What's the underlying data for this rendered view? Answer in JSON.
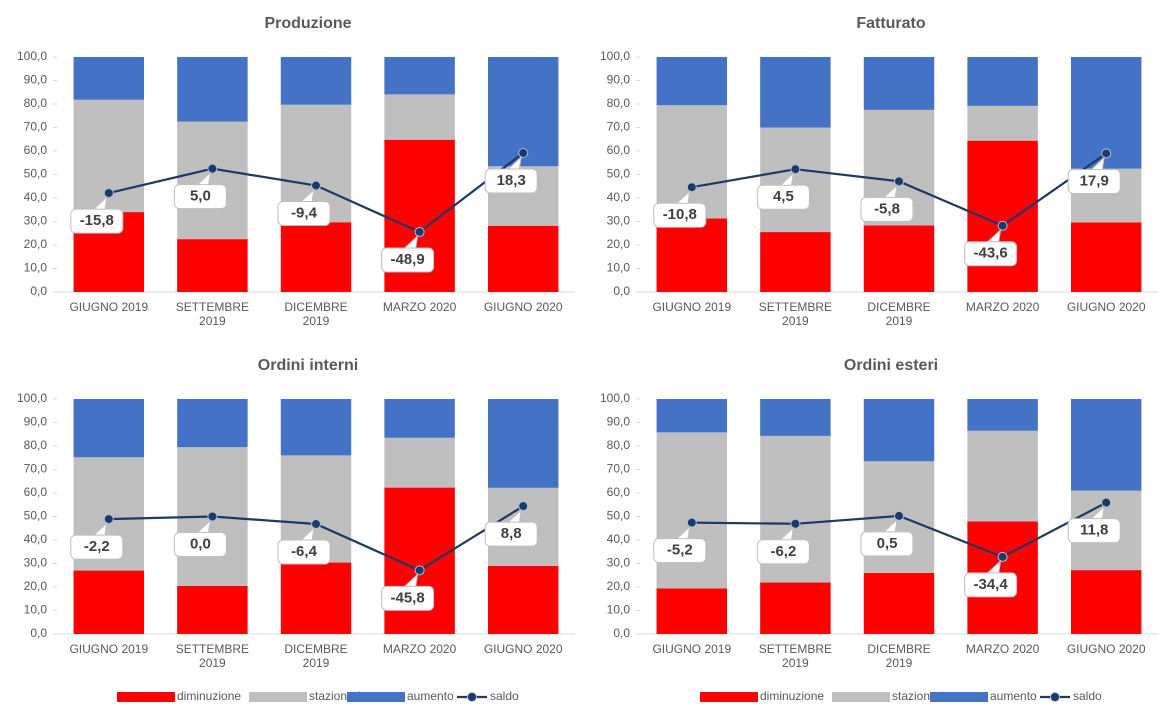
{
  "chart_data": [
    {
      "type": "stacked-bar-line",
      "title": "Produzione",
      "categories": [
        "GIUGNO 2019",
        "SETTEMBRE 2019",
        "DICEMBRE 2019",
        "MARZO 2020",
        "GIUGNO 2020"
      ],
      "ylim": [
        0,
        100
      ],
      "y2lim": [
        -100,
        100
      ],
      "yticks": [
        {
          "value": 0,
          "label": "0,0"
        },
        {
          "value": 10,
          "label": "10,0"
        },
        {
          "value": 20,
          "label": "20,0"
        },
        {
          "value": 30,
          "label": "30,0"
        },
        {
          "value": 40,
          "label": "40,0"
        },
        {
          "value": 50,
          "label": "50,0"
        },
        {
          "value": 60,
          "label": "60,0"
        },
        {
          "value": 70,
          "label": "70,0"
        },
        {
          "value": 80,
          "label": "80,0"
        },
        {
          "value": 90,
          "label": "90,0"
        },
        {
          "value": 100,
          "label": "100,0"
        }
      ],
      "legend": false,
      "series": [
        {
          "name": "diminuzione",
          "color": "#ff0000",
          "values": [
            34.0,
            22.5,
            29.7,
            64.8,
            28.2
          ]
        },
        {
          "name": "stazionaria",
          "color": "#bfbfbf",
          "values": [
            47.8,
            50.0,
            50.0,
            19.3,
            25.3
          ]
        },
        {
          "name": "aumento",
          "color": "#4472c4",
          "values": [
            18.2,
            27.5,
            20.3,
            15.9,
            46.5
          ]
        },
        {
          "name": "saldo",
          "color": "#1f3864",
          "axis": "y2",
          "values": [
            -15.8,
            5.0,
            -9.4,
            -48.9,
            18.3
          ],
          "value_labels": [
            "-15,8",
            "5,0",
            "-9,4",
            "-48,9",
            "18,3"
          ]
        }
      ]
    },
    {
      "type": "stacked-bar-line",
      "title": "Fatturato",
      "categories": [
        "GIUGNO 2019",
        "SETTEMBRE 2019",
        "DICEMBRE 2019",
        "MARZO 2020",
        "GIUGNO 2020"
      ],
      "ylim": [
        0,
        100
      ],
      "y2lim": [
        -100,
        100
      ],
      "yticks": [
        {
          "value": 0,
          "label": "0,0"
        },
        {
          "value": 10,
          "label": "10,0"
        },
        {
          "value": 20,
          "label": "20,0"
        },
        {
          "value": 30,
          "label": "30,0"
        },
        {
          "value": 40,
          "label": "40,0"
        },
        {
          "value": 50,
          "label": "50,0"
        },
        {
          "value": 60,
          "label": "60,0"
        },
        {
          "value": 70,
          "label": "70,0"
        },
        {
          "value": 80,
          "label": "80,0"
        },
        {
          "value": 90,
          "label": "90,0"
        },
        {
          "value": 100,
          "label": "100,0"
        }
      ],
      "legend": false,
      "series": [
        {
          "name": "diminuzione",
          "color": "#ff0000",
          "values": [
            31.3,
            25.5,
            28.3,
            64.4,
            29.6
          ]
        },
        {
          "name": "stazionaria",
          "color": "#bfbfbf",
          "values": [
            48.2,
            44.5,
            49.2,
            14.8,
            22.9
          ]
        },
        {
          "name": "aumento",
          "color": "#4472c4",
          "values": [
            20.5,
            30.0,
            22.5,
            20.8,
            47.5
          ]
        },
        {
          "name": "saldo",
          "color": "#1f3864",
          "axis": "y2",
          "values": [
            -10.8,
            4.5,
            -5.8,
            -43.6,
            17.9
          ],
          "value_labels": [
            "-10,8",
            "4,5",
            "-5,8",
            "-43,6",
            "17,9"
          ]
        }
      ]
    },
    {
      "type": "stacked-bar-line",
      "title": "Ordini interni",
      "categories": [
        "GIUGNO 2019",
        "SETTEMBRE 2019",
        "DICEMBRE 2019",
        "MARZO 2020",
        "GIUGNO 2020"
      ],
      "ylim": [
        0,
        100
      ],
      "y2lim": [
        -100,
        100
      ],
      "yticks": [
        {
          "value": 0,
          "label": "0,0"
        },
        {
          "value": 10,
          "label": "10,0"
        },
        {
          "value": 20,
          "label": "20,0"
        },
        {
          "value": 30,
          "label": "30,0"
        },
        {
          "value": 40,
          "label": "40,0"
        },
        {
          "value": 50,
          "label": "50,0"
        },
        {
          "value": 60,
          "label": "60,0"
        },
        {
          "value": 70,
          "label": "70,0"
        },
        {
          "value": 80,
          "label": "80,0"
        },
        {
          "value": 90,
          "label": "90,0"
        },
        {
          "value": 100,
          "label": "100,0"
        }
      ],
      "legend": true,
      "series": [
        {
          "name": "diminuzione",
          "color": "#ff0000",
          "values": [
            27.0,
            20.5,
            30.4,
            62.3,
            29.0
          ]
        },
        {
          "name": "stazionaria",
          "color": "#bfbfbf",
          "values": [
            48.2,
            59.0,
            45.6,
            21.2,
            33.2
          ]
        },
        {
          "name": "aumento",
          "color": "#4472c4",
          "values": [
            24.8,
            20.5,
            24.0,
            16.5,
            37.8
          ]
        },
        {
          "name": "saldo",
          "color": "#1f3864",
          "axis": "y2",
          "values": [
            -2.2,
            0.0,
            -6.4,
            -45.8,
            8.8
          ],
          "value_labels": [
            "-2,2",
            "0,0",
            "-6,4",
            "-45,8",
            "8,8"
          ]
        }
      ]
    },
    {
      "type": "stacked-bar-line",
      "title": "Ordini esteri",
      "categories": [
        "GIUGNO 2019",
        "SETTEMBRE 2019",
        "DICEMBRE 2019",
        "MARZO 2020",
        "GIUGNO 2020"
      ],
      "ylim": [
        0,
        100
      ],
      "y2lim": [
        -100,
        100
      ],
      "yticks": [
        {
          "value": 0,
          "label": "0,0"
        },
        {
          "value": 10,
          "label": "10,0"
        },
        {
          "value": 20,
          "label": "20,0"
        },
        {
          "value": 30,
          "label": "30,0"
        },
        {
          "value": 40,
          "label": "40,0"
        },
        {
          "value": 50,
          "label": "50,0"
        },
        {
          "value": 60,
          "label": "60,0"
        },
        {
          "value": 70,
          "label": "70,0"
        },
        {
          "value": 80,
          "label": "80,0"
        },
        {
          "value": 90,
          "label": "90,0"
        },
        {
          "value": 100,
          "label": "100,0"
        }
      ],
      "legend": true,
      "series": [
        {
          "name": "diminuzione",
          "color": "#ff0000",
          "values": [
            19.4,
            21.9,
            26.0,
            47.9,
            27.2
          ]
        },
        {
          "name": "stazionaria",
          "color": "#bfbfbf",
          "values": [
            66.4,
            62.4,
            47.5,
            38.6,
            33.8
          ]
        },
        {
          "name": "aumento",
          "color": "#4472c4",
          "values": [
            14.2,
            15.7,
            26.5,
            13.5,
            39.0
          ]
        },
        {
          "name": "saldo",
          "color": "#1f3864",
          "axis": "y2",
          "values": [
            -5.2,
            -6.2,
            0.5,
            -34.4,
            11.8
          ],
          "value_labels": [
            "-5,2",
            "-6,2",
            "0,5",
            "-34,4",
            "11,8"
          ]
        }
      ]
    }
  ]
}
